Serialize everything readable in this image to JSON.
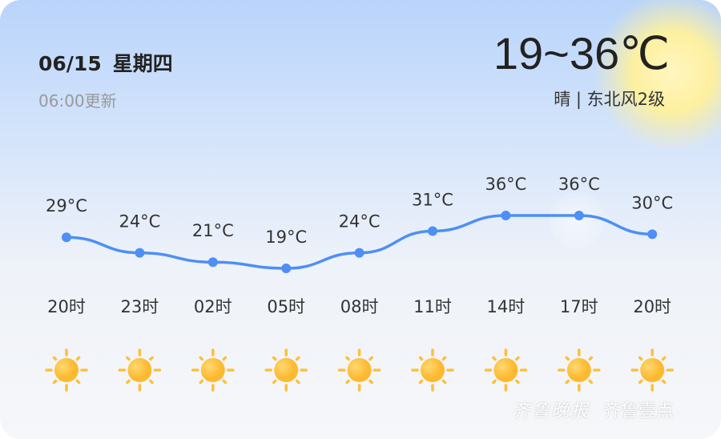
{
  "header": {
    "date": "06/15",
    "weekday": "星期四",
    "updated": "06:00更新",
    "temp_range": "19~36℃",
    "condition": "晴 | 东北风2级"
  },
  "watermark": {
    "brand1": "齐鲁晚报",
    "brand2": "齐鲁壹点"
  },
  "colors": {
    "line": "#4d8ff5",
    "sun": "#fdc03a"
  },
  "chart_data": {
    "type": "line",
    "unit": "°C",
    "x": [
      "20时",
      "23时",
      "02时",
      "05时",
      "08时",
      "11时",
      "14时",
      "17时",
      "20时"
    ],
    "values": [
      29,
      24,
      21,
      19,
      24,
      31,
      36,
      36,
      30
    ],
    "labels": [
      "29°C",
      "24°C",
      "21°C",
      "19°C",
      "24°C",
      "31°C",
      "36°C",
      "36°C",
      "30°C"
    ],
    "icons": [
      "sun-icon",
      "sun-icon",
      "sun-icon",
      "sun-icon",
      "sun-icon",
      "sun-icon",
      "sun-icon",
      "sun-icon",
      "sun-icon"
    ]
  }
}
